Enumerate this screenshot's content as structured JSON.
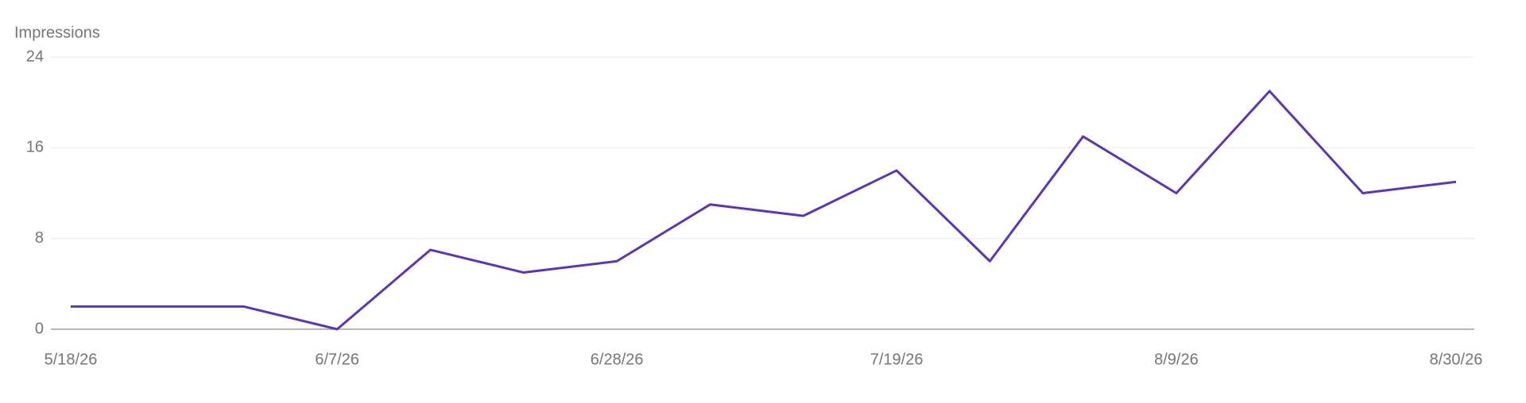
{
  "chart_data": {
    "type": "line",
    "y_label": "Impressions",
    "x": [
      "5/18/26",
      "5/31/26",
      "6/7/26",
      "6/14/26",
      "6/21/26",
      "6/28/26",
      "7/5/26",
      "7/12/26",
      "7/19/26",
      "7/26/26",
      "8/2/26",
      "8/9/26",
      "8/16/26",
      "8/23/26",
      "8/30/26"
    ],
    "series": [
      {
        "name": "Impressions",
        "color": "#5e35b1",
        "values": [
          2,
          2,
          0,
          7,
          5,
          6,
          11,
          10,
          14,
          6,
          17,
          12,
          21,
          12,
          13
        ]
      }
    ],
    "xlim": [
      "5/18/26",
      "8/30/26"
    ],
    "xticks": [
      "5/18/26",
      "6/7/26",
      "6/28/26",
      "7/19/26",
      "8/9/26",
      "8/30/26"
    ],
    "ylim": [
      0,
      24
    ],
    "yticks": [
      0,
      8,
      16,
      24
    ],
    "grid": true
  }
}
